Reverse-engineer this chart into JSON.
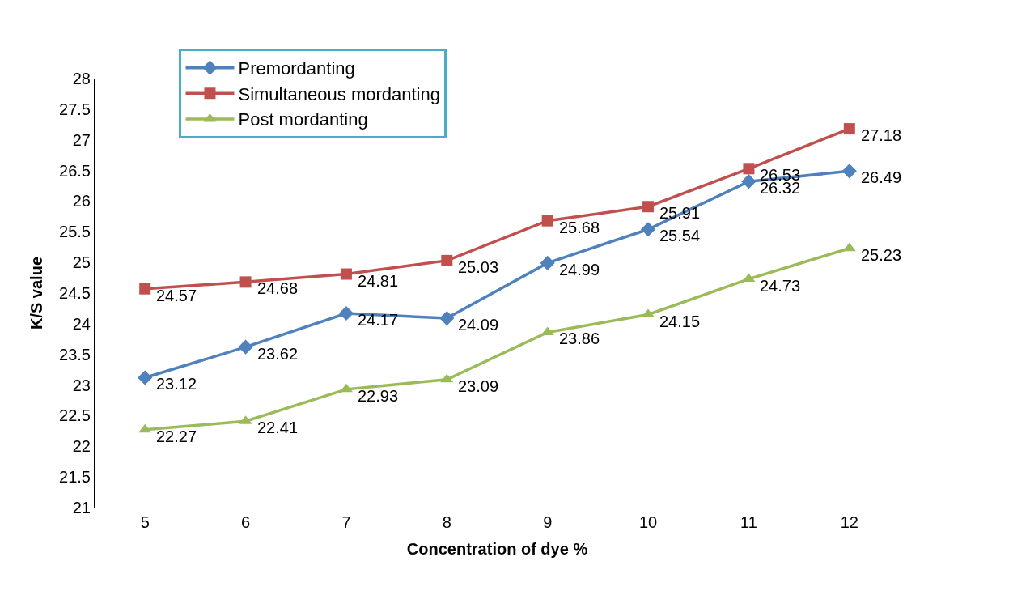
{
  "chart_data": {
    "type": "line",
    "xlabel": "Concentration of dye %",
    "ylabel": "K/S value",
    "categories": [
      "5",
      "6",
      "7",
      "8",
      "9",
      "10",
      "11",
      "12"
    ],
    "series": [
      {
        "name": "Premordanting",
        "color": "#4f81bd",
        "marker": "diamond",
        "values": [
          23.12,
          23.62,
          24.17,
          24.09,
          24.99,
          25.54,
          26.32,
          26.49
        ]
      },
      {
        "name": "Simultaneous mordanting",
        "color": "#c0504d",
        "marker": "square",
        "values": [
          24.57,
          24.68,
          24.81,
          25.03,
          25.68,
          25.91,
          26.53,
          27.18
        ]
      },
      {
        "name": "Post mordanting",
        "color": "#9bbb59",
        "marker": "triangle",
        "values": [
          22.27,
          22.41,
          22.93,
          23.09,
          23.86,
          24.15,
          24.73,
          25.23
        ]
      }
    ],
    "ylim": [
      21,
      28
    ],
    "yticks": [
      "21",
      "21.5",
      "22",
      "22.5",
      "23",
      "23.5",
      "24",
      "24.5",
      "25",
      "25.5",
      "26",
      "26.5",
      "27",
      "27.5",
      "28"
    ],
    "data_labels": true,
    "legend": "top left",
    "line_style": "solid"
  }
}
